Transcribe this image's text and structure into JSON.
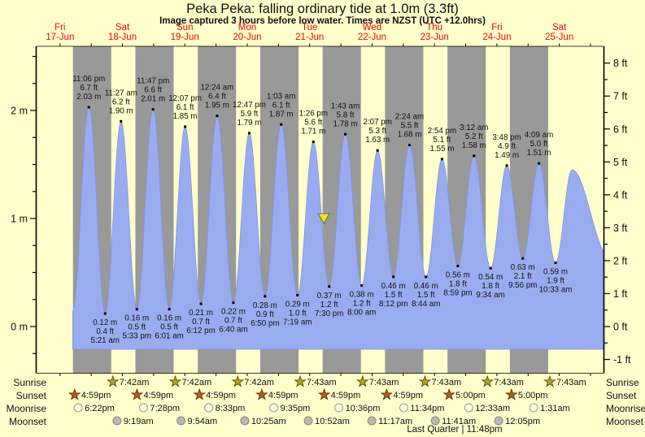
{
  "title": "Peka Peka: falling  ordinary tide at 1.0m (3.3ft)",
  "subtitle": "Image captured 3 hours before low water. Times are NZST (UTC +12.0hrs)",
  "colors": {
    "background": "#ffffcc",
    "night_band": "#999999",
    "tide_fill": "#9aacf0",
    "tide_stroke": "#8093e8",
    "day_label": "#ff0000",
    "marker_fill": "#f0e713",
    "sunrise_star": "#b8a32a",
    "sunset_star": "#b25f1e",
    "moonrise_circle": "#ffffd8",
    "moonset_circle": "#b8b8b0"
  },
  "days": [
    {
      "name": "Fri",
      "date": "17-Jun"
    },
    {
      "name": "Sat",
      "date": "18-Jun"
    },
    {
      "name": "Sun",
      "date": "19-Jun"
    },
    {
      "name": "Mon",
      "date": "20-Jun"
    },
    {
      "name": "Tue",
      "date": "21-Jun"
    },
    {
      "name": "Wed",
      "date": "22-Jun"
    },
    {
      "name": "Thu",
      "date": "23-Jun"
    },
    {
      "name": "Fri",
      "date": "24-Jun"
    },
    {
      "name": "Sat",
      "date": "25-Jun"
    }
  ],
  "chart_data": {
    "type": "area",
    "series_name": "tide height",
    "x_axis": "time, Fri 17-Jun through Sat 25-Jun (NZST)",
    "y_axis_left_unit": "m",
    "y_axis_right_unit": "ft",
    "ylim_m": [
      -0.35,
      2.55
    ],
    "left_ticks": [
      {
        "m": 2,
        "label": "2 m"
      },
      {
        "m": 1,
        "label": "1 m"
      },
      {
        "m": 0,
        "label": "0 m"
      }
    ],
    "right_ticks": [
      {
        "ft": 8,
        "label": "8 ft"
      },
      {
        "ft": 7,
        "label": "7 ft"
      },
      {
        "ft": 6,
        "label": "6 ft"
      },
      {
        "ft": 5,
        "label": "5 ft"
      },
      {
        "ft": 4,
        "label": "4 ft"
      },
      {
        "ft": 3,
        "label": "3 ft"
      },
      {
        "ft": 2,
        "label": "2 ft"
      },
      {
        "ft": 1,
        "label": "1 ft"
      },
      {
        "ft": 0,
        "label": "0 ft"
      },
      {
        "ft": -1,
        "label": "-1 ft"
      }
    ],
    "tide_events": [
      {
        "type": "high",
        "t": 23.1,
        "m_value": 2.03,
        "time": "11:06 pm",
        "ft": "6.7 ft",
        "m": "2.03 m"
      },
      {
        "type": "low",
        "t": 29.35,
        "m_value": 0.12,
        "time": "5:21 am",
        "ft": "0.4 ft",
        "m": "0.12 m"
      },
      {
        "type": "high",
        "t": 35.45,
        "m_value": 1.9,
        "time": "11:27 am",
        "ft": "6.2 ft",
        "m": "1.90 m"
      },
      {
        "type": "low",
        "t": 41.55,
        "m_value": 0.16,
        "time": "5:33 pm",
        "ft": "0.5 ft",
        "m": "0.16 m"
      },
      {
        "type": "high",
        "t": 47.783,
        "m_value": 2.01,
        "time": "11:47 pm",
        "ft": "6.6 ft",
        "m": "2.01 m"
      },
      {
        "type": "low",
        "t": 54.017,
        "m_value": 0.16,
        "time": "6:01 am",
        "ft": "0.5 ft",
        "m": "0.16 m"
      },
      {
        "type": "high",
        "t": 60.117,
        "m_value": 1.85,
        "time": "12:07 pm",
        "ft": "6.1 ft",
        "m": "1.85 m"
      },
      {
        "type": "low",
        "t": 66.2,
        "m_value": 0.21,
        "time": "6:12 pm",
        "ft": "0.7 ft",
        "m": "0.21 m"
      },
      {
        "type": "high",
        "t": 72.4,
        "m_value": 1.95,
        "time": "12:24 am",
        "ft": "6.4 ft",
        "m": "1.95 m"
      },
      {
        "type": "low",
        "t": 78.667,
        "m_value": 0.22,
        "time": "6:40 am",
        "ft": "0.7 ft",
        "m": "0.22 m"
      },
      {
        "type": "high",
        "t": 84.783,
        "m_value": 1.79,
        "time": "12:47 pm",
        "ft": "5.9 ft",
        "m": "1.79 m"
      },
      {
        "type": "low",
        "t": 90.833,
        "m_value": 0.28,
        "time": "6:50 pm",
        "ft": "0.9 ft",
        "m": "0.28 m"
      },
      {
        "type": "high",
        "t": 97.05,
        "m_value": 1.87,
        "time": "1:03 am",
        "ft": "6.1 ft",
        "m": "1.87 m"
      },
      {
        "type": "low",
        "t": 103.317,
        "m_value": 0.29,
        "time": "7:19 am",
        "ft": "1.0 ft",
        "m": "0.29 m"
      },
      {
        "type": "high",
        "t": 109.433,
        "m_value": 1.71,
        "time": "1:26 pm",
        "ft": "5.6 ft",
        "m": "1.71 m"
      },
      {
        "type": "low",
        "t": 115.5,
        "m_value": 0.37,
        "time": "7:30 pm",
        "ft": "1.2 ft",
        "m": "0.37 m"
      },
      {
        "type": "high",
        "t": 121.717,
        "m_value": 1.78,
        "time": "1:43 am",
        "ft": "5.8 ft",
        "m": "1.78 m"
      },
      {
        "type": "low",
        "t": 128.0,
        "m_value": 0.38,
        "time": "8:00 am",
        "ft": "1.2 ft",
        "m": "0.38 m"
      },
      {
        "type": "high",
        "t": 134.117,
        "m_value": 1.63,
        "time": "2:07 pm",
        "ft": "5.3 ft",
        "m": "1.63 m"
      },
      {
        "type": "low",
        "t": 140.2,
        "m_value": 0.46,
        "time": "8:12 pm",
        "ft": "1.5 ft",
        "m": "0.46 m"
      },
      {
        "type": "high",
        "t": 146.4,
        "m_value": 1.68,
        "time": "2:24 am",
        "ft": "5.5 ft",
        "m": "1.68 m"
      },
      {
        "type": "low",
        "t": 152.733,
        "m_value": 0.46,
        "time": "8:44 am",
        "ft": "1.5 ft",
        "m": "0.46 m"
      },
      {
        "type": "high",
        "t": 158.9,
        "m_value": 1.55,
        "time": "2:54 pm",
        "ft": "5.1 ft",
        "m": "1.55 m"
      },
      {
        "type": "low",
        "t": 164.983,
        "m_value": 0.56,
        "time": "8:59 pm",
        "ft": "1.8 ft",
        "m": "0.56 m"
      },
      {
        "type": "high",
        "t": 171.2,
        "m_value": 1.58,
        "time": "3:12 am",
        "ft": "5.2 ft",
        "m": "1.58 m"
      },
      {
        "type": "low",
        "t": 177.567,
        "m_value": 0.54,
        "time": "9:34 am",
        "ft": "1.8 ft",
        "m": "0.54 m"
      },
      {
        "type": "high",
        "t": 183.8,
        "m_value": 1.49,
        "time": "3:48 pm",
        "ft": "4.9 ft",
        "m": "1.49 m"
      },
      {
        "type": "low",
        "t": 189.933,
        "m_value": 0.63,
        "time": "9:56 pm",
        "ft": "2.1 ft",
        "m": "0.63 m"
      },
      {
        "type": "high",
        "t": 196.15,
        "m_value": 1.51,
        "time": "4:09 am",
        "ft": "5.0 ft",
        "m": "1.51 m"
      },
      {
        "type": "low",
        "t": 202.55,
        "m_value": 0.59,
        "time": "10:33 am",
        "ft": "1.9 ft",
        "m": "0.59 m"
      }
    ],
    "curve_edge_anchors": [
      {
        "t": 16.9,
        "m_value": 0.14
      },
      {
        "t": 208.9,
        "m_value": 1.45
      },
      {
        "t": 223.2,
        "m_value": 0.65
      }
    ],
    "current_marker": {
      "t": 112.5,
      "m_value": 1.0
    }
  },
  "astro": {
    "row_labels": [
      "Sunrise",
      "Sunset",
      "Moonrise",
      "Moonset"
    ],
    "sunrise": [
      {
        "t": 31.7,
        "label": "7:42am"
      },
      {
        "t": 55.7,
        "label": "7:42am"
      },
      {
        "t": 79.7,
        "label": "7:42am"
      },
      {
        "t": 103.717,
        "label": "7:43am"
      },
      {
        "t": 127.717,
        "label": "7:43am"
      },
      {
        "t": 151.717,
        "label": "7:43am"
      },
      {
        "t": 175.717,
        "label": "7:43am"
      },
      {
        "t": 199.717,
        "label": "7:43am"
      }
    ],
    "sunset": [
      {
        "t": 16.983,
        "label": "4:59pm"
      },
      {
        "t": 40.983,
        "label": "4:59pm"
      },
      {
        "t": 64.983,
        "label": "4:59pm"
      },
      {
        "t": 88.983,
        "label": "4:59pm"
      },
      {
        "t": 112.983,
        "label": "4:59pm"
      },
      {
        "t": 136.983,
        "label": "4:59pm"
      },
      {
        "t": 161.0,
        "label": "5:00pm"
      },
      {
        "t": 185.0,
        "label": "5:00pm"
      }
    ],
    "moonrise": [
      {
        "t": 18.367,
        "label": "6:22pm"
      },
      {
        "t": 43.467,
        "label": "7:28pm"
      },
      {
        "t": 68.55,
        "label": "8:33pm"
      },
      {
        "t": 93.583,
        "label": "9:35pm"
      },
      {
        "t": 118.6,
        "label": "10:36pm"
      },
      {
        "t": 143.567,
        "label": "11:34pm"
      },
      {
        "t": 168.55,
        "label": "12:33am"
      },
      {
        "t": 193.517,
        "label": "1:31am"
      }
    ],
    "moonset": [
      {
        "t": 33.317,
        "label": "9:19am"
      },
      {
        "t": 57.9,
        "label": "9:54am"
      },
      {
        "t": 82.417,
        "label": "10:25am"
      },
      {
        "t": 106.867,
        "label": "10:52am"
      },
      {
        "t": 131.283,
        "label": "11:17am"
      },
      {
        "t": 155.683,
        "label": "11:41am"
      },
      {
        "t": 180.083,
        "label": "12:05pm"
      }
    ],
    "moon_phase": "Last Quarter | 11:48pm"
  }
}
